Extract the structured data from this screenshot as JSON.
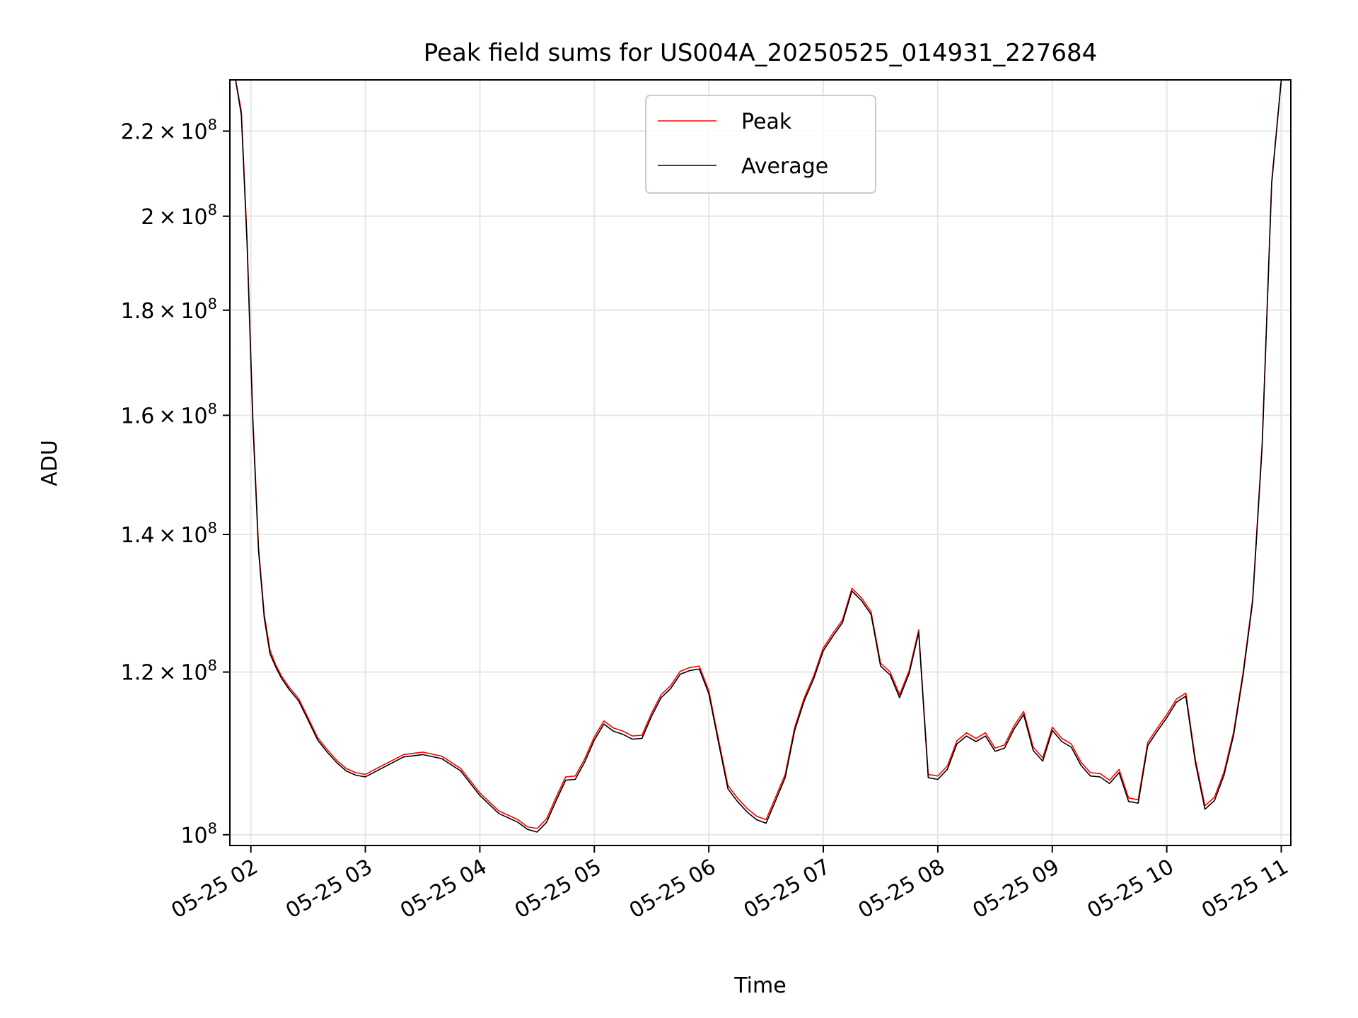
{
  "chart_data": {
    "type": "line",
    "title": "Peak field sums for US004A_20250525_014931_227684",
    "xlabel": "Time",
    "ylabel": "ADU",
    "xlim": [
      "2025-05-25 01:49",
      "2025-05-25 11:05"
    ],
    "ylim": [
      98800000,
      233000000
    ],
    "yscale": "log",
    "grid": true,
    "legend": "upper center",
    "x_tick_labels": [
      "05-25 02",
      "05-25 03",
      "05-25 04",
      "05-25 05",
      "05-25 06",
      "05-25 07",
      "05-25 08",
      "05-25 09",
      "05-25 10",
      "05-25 11"
    ],
    "y_tick_labels": [
      {
        "value": 100000000,
        "mant": "",
        "exp": "8",
        "prefix": "10"
      },
      {
        "value": 120000000,
        "mant": "1.2",
        "exp": "8",
        "prefix": "10"
      },
      {
        "value": 140000000,
        "mant": "1.4",
        "exp": "8",
        "prefix": "10"
      },
      {
        "value": 160000000,
        "mant": "1.6",
        "exp": "8",
        "prefix": "10"
      },
      {
        "value": 180000000,
        "mant": "1.8",
        "exp": "8",
        "prefix": "10"
      },
      {
        "value": 200000000,
        "mant": "2",
        "exp": "8",
        "prefix": "10"
      },
      {
        "value": 220000000,
        "mant": "2.2",
        "exp": "8",
        "prefix": "10"
      }
    ],
    "x": [
      "01:49",
      "01:52",
      "01:55",
      "01:58",
      "02:01",
      "02:04",
      "02:07",
      "02:10",
      "02:13",
      "02:16",
      "02:20",
      "02:25",
      "02:30",
      "02:35",
      "02:40",
      "02:45",
      "02:50",
      "02:55",
      "03:00",
      "03:10",
      "03:20",
      "03:30",
      "03:40",
      "03:50",
      "04:00",
      "04:10",
      "04:20",
      "04:25",
      "04:30",
      "04:35",
      "04:40",
      "04:45",
      "04:50",
      "04:55",
      "05:00",
      "05:05",
      "05:10",
      "05:15",
      "05:20",
      "05:25",
      "05:30",
      "05:35",
      "05:40",
      "05:45",
      "05:50",
      "05:55",
      "06:00",
      "06:05",
      "06:10",
      "06:15",
      "06:20",
      "06:25",
      "06:30",
      "06:35",
      "06:40",
      "06:45",
      "06:50",
      "06:55",
      "07:00",
      "07:05",
      "07:10",
      "07:15",
      "07:20",
      "07:25",
      "07:30",
      "07:35",
      "07:40",
      "07:45",
      "07:50",
      "07:55",
      "08:00",
      "08:05",
      "08:10",
      "08:15",
      "08:20",
      "08:25",
      "08:30",
      "08:35",
      "08:40",
      "08:45",
      "08:50",
      "08:55",
      "09:00",
      "09:05",
      "09:10",
      "09:15",
      "09:20",
      "09:25",
      "09:30",
      "09:35",
      "09:40",
      "09:45",
      "09:50",
      "09:55",
      "10:00",
      "10:05",
      "10:10",
      "10:15",
      "10:20",
      "10:25",
      "10:30",
      "10:35",
      "10:40",
      "10:45",
      "10:50",
      "10:55",
      "11:00"
    ],
    "series": [
      {
        "name": "Peak",
        "color": "#ff0000",
        "values": [
          233000000,
          233000000,
          225000000,
          195000000,
          160000000,
          138000000,
          128000000,
          123000000,
          121000000,
          119500000,
          118000000,
          116500000,
          114000000,
          111500000,
          110000000,
          108700000,
          107700000,
          107200000,
          107000000,
          108200000,
          109400000,
          109700000,
          109200000,
          107700000,
          104800000,
          102700000,
          101700000,
          100900000,
          100700000,
          101800000,
          104300000,
          106700000,
          106800000,
          108900000,
          111600000,
          113600000,
          112700000,
          112300000,
          111700000,
          111800000,
          114600000,
          117000000,
          118200000,
          120100000,
          120600000,
          120800000,
          117500000,
          111400000,
          105700000,
          104200000,
          103000000,
          102100000,
          101700000,
          104300000,
          107000000,
          112800000,
          116600000,
          119500000,
          123300000,
          125300000,
          127200000,
          131800000,
          130400000,
          128400000,
          121200000,
          120000000,
          117000000,
          120200000,
          125800000,
          107000000,
          106800000,
          108000000,
          111100000,
          112100000,
          111400000,
          112100000,
          110200000,
          110600000,
          113000000,
          114800000,
          110300000,
          109000000,
          112800000,
          111400000,
          110700000,
          108500000,
          107200000,
          107100000,
          106300000,
          107600000,
          104200000,
          104000000,
          110900000,
          112700000,
          114400000,
          116400000,
          117200000,
          108800000,
          103300000,
          104300000,
          107300000,
          112200000,
          120000000,
          130200000,
          155000000,
          208000000,
          233000000
        ]
      },
      {
        "name": "Average",
        "color": "#000000",
        "values": [
          233000000,
          233000000,
          224000000,
          194000000,
          159000000,
          137500000,
          127500000,
          122500000,
          120700000,
          119200000,
          117700000,
          116200000,
          113700000,
          111200000,
          109700000,
          108400000,
          107400000,
          106900000,
          106700000,
          107900000,
          109100000,
          109400000,
          108900000,
          107400000,
          104500000,
          102400000,
          101400000,
          100600000,
          100300000,
          101400000,
          103900000,
          106300000,
          106400000,
          108500000,
          111200000,
          113200000,
          112300000,
          111900000,
          111300000,
          111400000,
          114200000,
          116600000,
          117800000,
          119700000,
          120200000,
          120400000,
          117100000,
          111000000,
          105300000,
          103800000,
          102600000,
          101700000,
          101300000,
          103900000,
          106600000,
          112400000,
          116200000,
          119100000,
          122900000,
          124900000,
          126800000,
          131400000,
          130000000,
          128000000,
          120800000,
          119600000,
          116600000,
          119800000,
          125400000,
          106600000,
          106400000,
          107600000,
          110700000,
          111700000,
          111000000,
          111700000,
          109800000,
          110200000,
          112600000,
          114400000,
          109900000,
          108600000,
          112400000,
          111000000,
          110300000,
          108100000,
          106800000,
          106700000,
          105900000,
          107200000,
          103800000,
          103600000,
          110500000,
          112300000,
          114000000,
          116000000,
          116800000,
          108400000,
          102900000,
          103900000,
          106900000,
          111800000,
          119600000,
          129800000,
          154500000,
          207500000,
          233000000
        ]
      }
    ]
  }
}
